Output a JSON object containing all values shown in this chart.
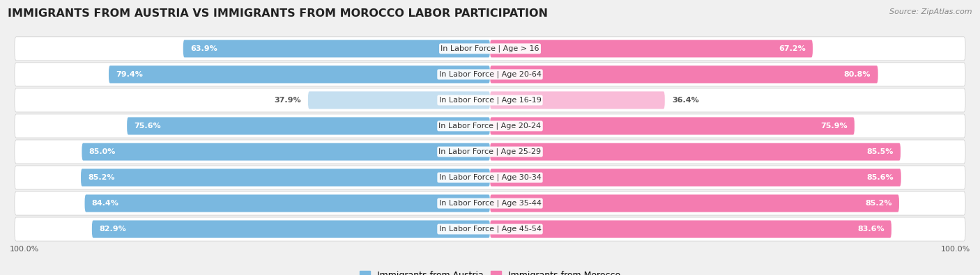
{
  "title": "IMMIGRANTS FROM AUSTRIA VS IMMIGRANTS FROM MOROCCO LABOR PARTICIPATION",
  "source": "Source: ZipAtlas.com",
  "categories": [
    "In Labor Force | Age > 16",
    "In Labor Force | Age 20-64",
    "In Labor Force | Age 16-19",
    "In Labor Force | Age 20-24",
    "In Labor Force | Age 25-29",
    "In Labor Force | Age 30-34",
    "In Labor Force | Age 35-44",
    "In Labor Force | Age 45-54"
  ],
  "austria_values": [
    63.9,
    79.4,
    37.9,
    75.6,
    85.0,
    85.2,
    84.4,
    82.9
  ],
  "morocco_values": [
    67.2,
    80.8,
    36.4,
    75.9,
    85.5,
    85.6,
    85.2,
    83.6
  ],
  "austria_color": "#7ab8e0",
  "austria_color_light": "#c5dff0",
  "morocco_color": "#f47cb0",
  "morocco_color_light": "#f9bcd8",
  "bar_height": 0.68,
  "background_color": "#f0f0f0",
  "row_bg_even": "#e8e8e8",
  "row_bg_odd": "#f2f2f2",
  "title_fontsize": 11.5,
  "label_fontsize": 8,
  "value_fontsize": 8,
  "legend_fontsize": 9,
  "source_fontsize": 8
}
